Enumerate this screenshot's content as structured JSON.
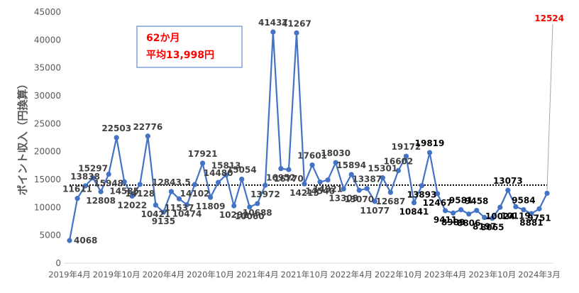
{
  "chart_data": {
    "type": "line",
    "ylabel": "ポイント収入（円換算）",
    "ylim": [
      0,
      45000
    ],
    "yticks": [
      0,
      5000,
      10000,
      15000,
      20000,
      25000,
      30000,
      35000,
      40000,
      45000
    ],
    "x_tick_labels": [
      "2019年4月",
      "2019年10月",
      "2020年4月",
      "2020年10月",
      "2021年4月",
      "2021年10月",
      "2022年4月",
      "2022年10月",
      "2023年4月",
      "2023年10月",
      "2024年3月"
    ],
    "average": 13998,
    "annotation": [
      "62か月",
      "平均13,998円"
    ],
    "series": [
      {
        "color": "#4472c4",
        "values": [
          4068,
          11611,
          13838,
          15297,
          12808,
          15948,
          22503,
          14585,
          12022,
          14128,
          22776,
          10421,
          9135,
          12843.5,
          11537,
          10474,
          14102,
          17921,
          11809,
          14480,
          15813,
          10292,
          15054,
          10060,
          10688,
          13972,
          41437,
          16952,
          16770,
          41267,
          14215,
          17601,
          14540,
          14921,
          18030,
          13309,
          15894,
          13070,
          13387,
          11077,
          15301,
          12687,
          16602,
          19172,
          10841,
          13893,
          19819,
          12467,
          9411,
          8989,
          9581,
          8806,
          9458,
          8197,
          8065,
          10024,
          13073,
          10119,
          9584,
          8881,
          9751,
          12524
        ]
      }
    ],
    "point_labels": [
      "4068",
      "11611",
      "13838",
      "15297",
      "12808",
      "15948",
      "22503",
      "14585",
      "12022",
      "14128",
      "22776",
      "10421",
      "9135",
      "12843.5",
      "11537",
      "10474",
      "14102",
      "17921",
      "11809",
      "14480",
      "15813",
      "10292",
      "15054",
      "10060",
      "10688",
      "13972",
      "41437",
      "16952",
      "16770",
      "41267",
      "14215",
      "17601",
      "14540",
      "14921",
      "18030",
      "13309",
      "15894",
      "13070",
      "13387",
      "11077",
      "15301",
      "12687",
      "16602",
      "19172",
      "10841",
      "13893",
      "19819",
      "12467",
      "9411",
      "8989",
      "9581",
      "8806",
      "9458",
      "8197",
      "8065",
      "10024",
      "13073",
      "10119",
      "9584",
      "8881",
      "9751",
      "12524"
    ],
    "label_colors": {
      "default": "#404040",
      "late": "#000000",
      "last": "#ff0000"
    },
    "avg_line_color": "#000000",
    "grid": false
  }
}
